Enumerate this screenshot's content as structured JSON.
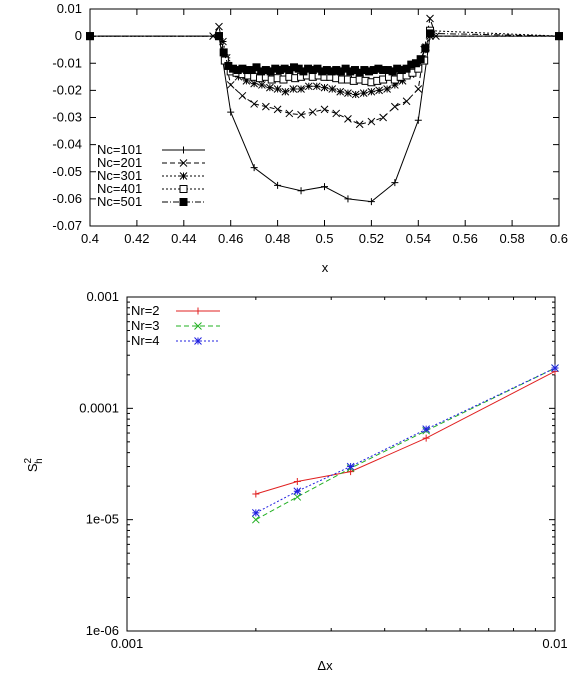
{
  "chart_data": [
    {
      "type": "line",
      "xlabel": "x",
      "ylabel": "",
      "xlim": [
        0.4,
        0.6
      ],
      "ylim": [
        -0.07,
        0.01
      ],
      "x_ticks": [
        "0.4",
        "0.42",
        "0.44",
        "0.46",
        "0.48",
        "0.5",
        "0.52",
        "0.54",
        "0.56",
        "0.58",
        "0.6"
      ],
      "y_ticks": [
        "0.01",
        "0",
        "-0.01",
        "-0.02",
        "-0.03",
        "-0.04",
        "-0.05",
        "-0.06",
        "-0.07"
      ],
      "legend_position": "bottom-left",
      "grid": false,
      "series": [
        {
          "name": "Nc=101",
          "marker": "plus",
          "dash": "solid",
          "x": [
            0.4,
            0.455,
            0.46,
            0.47,
            0.48,
            0.49,
            0.5,
            0.51,
            0.52,
            0.53,
            0.54,
            0.545,
            0.6
          ],
          "y": [
            0,
            0,
            -0.028,
            -0.0485,
            -0.055,
            -0.057,
            -0.0555,
            -0.06,
            -0.061,
            -0.054,
            -0.031,
            0,
            0
          ]
        },
        {
          "name": "Nc=201",
          "marker": "cross",
          "dash": "dashed",
          "x": [
            0.4,
            0.4525,
            0.455,
            0.4575,
            0.46,
            0.465,
            0.47,
            0.475,
            0.48,
            0.485,
            0.49,
            0.495,
            0.5,
            0.505,
            0.51,
            0.515,
            0.52,
            0.525,
            0.53,
            0.535,
            0.54,
            0.5425,
            0.545,
            0.5475,
            0.6
          ],
          "y": [
            0,
            0,
            0.0035,
            -0.008,
            -0.018,
            -0.022,
            -0.025,
            -0.026,
            -0.027,
            -0.0285,
            -0.029,
            -0.028,
            -0.027,
            -0.0285,
            -0.0305,
            -0.0325,
            -0.0315,
            -0.03,
            -0.026,
            -0.024,
            -0.0195,
            -0.005,
            0.0065,
            0,
            0
          ]
        },
        {
          "name": "Nc=301",
          "marker": "star",
          "dash": "dotted",
          "x": [
            0.4,
            0.455,
            0.4567,
            0.4583,
            0.46,
            0.4633,
            0.4667,
            0.47,
            0.4733,
            0.4767,
            0.48,
            0.4833,
            0.4867,
            0.49,
            0.4933,
            0.4967,
            0.5,
            0.5033,
            0.5067,
            0.51,
            0.5133,
            0.5167,
            0.52,
            0.5233,
            0.5267,
            0.53,
            0.5333,
            0.5367,
            0.54,
            0.5433,
            0.545,
            0.6
          ],
          "y": [
            0,
            0,
            -0.002,
            -0.008,
            -0.013,
            -0.015,
            -0.0165,
            -0.0175,
            -0.018,
            -0.019,
            -0.0195,
            -0.0205,
            -0.0195,
            -0.0195,
            -0.0185,
            -0.0185,
            -0.019,
            -0.0195,
            -0.0205,
            -0.021,
            -0.0215,
            -0.021,
            -0.0205,
            -0.02,
            -0.0195,
            -0.018,
            -0.0165,
            -0.014,
            -0.012,
            -0.004,
            0,
            0
          ]
        },
        {
          "name": "Nc=401",
          "marker": "square-open",
          "dash": "dotted",
          "x": [
            0.4,
            0.455,
            0.4575,
            0.46,
            0.4625,
            0.465,
            0.4675,
            0.47,
            0.4725,
            0.475,
            0.4775,
            0.48,
            0.4825,
            0.485,
            0.4875,
            0.49,
            0.4925,
            0.495,
            0.4975,
            0.5,
            0.5025,
            0.505,
            0.5075,
            0.51,
            0.5125,
            0.515,
            0.5175,
            0.52,
            0.5225,
            0.525,
            0.5275,
            0.53,
            0.5325,
            0.535,
            0.5375,
            0.54,
            0.5425,
            0.545,
            0.6
          ],
          "y": [
            0,
            0,
            -0.009,
            -0.013,
            -0.0135,
            -0.014,
            -0.0145,
            -0.015,
            -0.0155,
            -0.015,
            -0.016,
            -0.0155,
            -0.016,
            -0.015,
            -0.0155,
            -0.015,
            -0.0145,
            -0.015,
            -0.0145,
            -0.015,
            -0.015,
            -0.0155,
            -0.016,
            -0.016,
            -0.0165,
            -0.016,
            -0.0165,
            -0.017,
            -0.0165,
            -0.016,
            -0.015,
            -0.016,
            -0.015,
            -0.0145,
            -0.0135,
            -0.012,
            -0.009,
            0.002,
            0
          ]
        },
        {
          "name": "Nc=501",
          "marker": "square-filled",
          "dash": "dashdot",
          "x": [
            0.4,
            0.455,
            0.457,
            0.459,
            0.461,
            0.463,
            0.465,
            0.467,
            0.469,
            0.471,
            0.473,
            0.475,
            0.477,
            0.479,
            0.481,
            0.483,
            0.485,
            0.487,
            0.489,
            0.491,
            0.493,
            0.495,
            0.497,
            0.499,
            0.501,
            0.503,
            0.505,
            0.507,
            0.509,
            0.511,
            0.513,
            0.515,
            0.517,
            0.519,
            0.521,
            0.523,
            0.525,
            0.527,
            0.529,
            0.531,
            0.533,
            0.535,
            0.537,
            0.539,
            0.541,
            0.543,
            0.545,
            0.6
          ],
          "y": [
            0,
            0,
            -0.006,
            -0.011,
            -0.012,
            -0.0125,
            -0.012,
            -0.0125,
            -0.0125,
            -0.0115,
            -0.013,
            -0.0125,
            -0.013,
            -0.012,
            -0.0125,
            -0.012,
            -0.0125,
            -0.0115,
            -0.012,
            -0.013,
            -0.012,
            -0.0125,
            -0.012,
            -0.013,
            -0.0125,
            -0.013,
            -0.0125,
            -0.013,
            -0.012,
            -0.013,
            -0.0125,
            -0.0135,
            -0.0125,
            -0.013,
            -0.0125,
            -0.012,
            -0.0125,
            -0.0125,
            -0.013,
            -0.012,
            -0.0125,
            -0.012,
            -0.0105,
            -0.01,
            -0.0085,
            -0.0045,
            0.001,
            0
          ]
        }
      ]
    },
    {
      "type": "line",
      "xlabel": "Δx",
      "ylabel": "S",
      "ylabel_sup": "2",
      "ylabel_sub": "h",
      "xscale": "log",
      "yscale": "log",
      "xlim": [
        0.001,
        0.01
      ],
      "ylim": [
        1e-06,
        0.001
      ],
      "x_ticks": [
        "0.001",
        "0.01"
      ],
      "y_ticks": [
        "0.001",
        "0.0001",
        "1e-05",
        "1e-06"
      ],
      "legend_position": "top-left",
      "grid": false,
      "series": [
        {
          "name": "Nr=2",
          "color": "#e02020",
          "marker": "plus",
          "dash": "solid",
          "x": [
            0.002,
            0.0025,
            0.00333,
            0.005,
            0.01
          ],
          "y": [
            1.7e-05,
            2.2e-05,
            2.7e-05,
            5.4e-05,
            0.000215
          ]
        },
        {
          "name": "Nr=3",
          "color": "#22b022",
          "marker": "cross",
          "dash": "dashed",
          "x": [
            0.002,
            0.0025,
            0.00333,
            0.005,
            0.01
          ],
          "y": [
            1e-05,
            1.6e-05,
            2.9e-05,
            6.3e-05,
            0.00023
          ]
        },
        {
          "name": "Nr=4",
          "color": "#2020e0",
          "marker": "star",
          "dash": "dotted",
          "x": [
            0.002,
            0.0025,
            0.00333,
            0.005,
            0.01
          ],
          "y": [
            1.15e-05,
            1.8e-05,
            3e-05,
            6.5e-05,
            0.00023
          ]
        }
      ]
    }
  ]
}
